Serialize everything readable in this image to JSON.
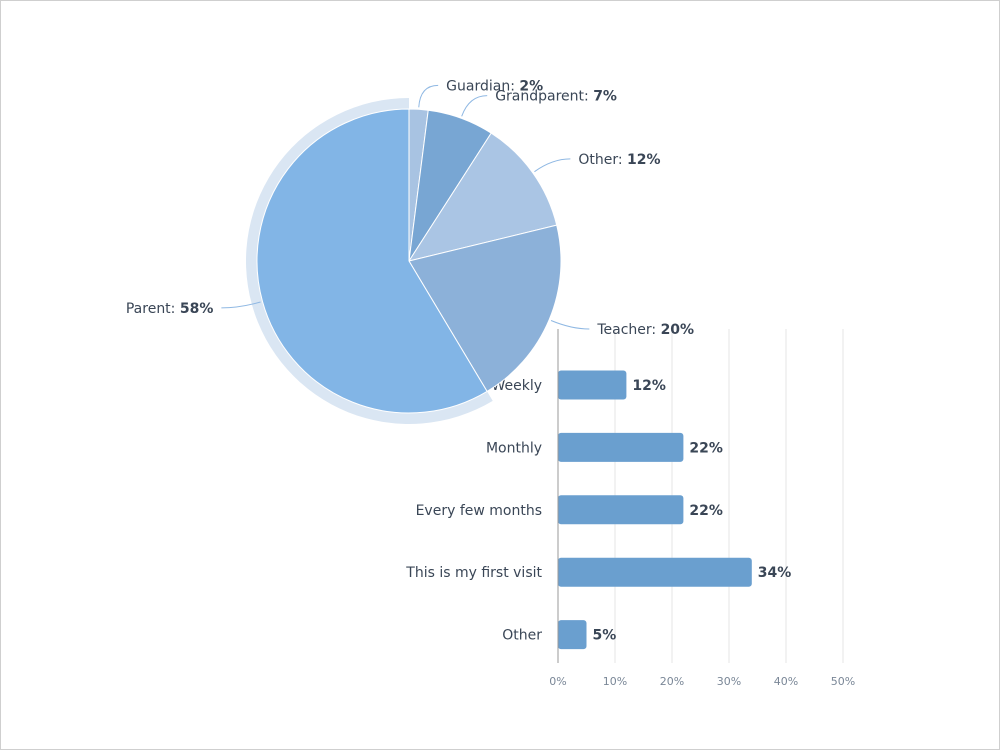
{
  "chart_data": [
    {
      "type": "pie",
      "slices": [
        {
          "label": "Guardian",
          "value": 2,
          "display": "2%",
          "color": "#a8c3e2"
        },
        {
          "label": "Grandparent",
          "value": 7,
          "display": "7%",
          "color": "#78a6d3"
        },
        {
          "label": "Other",
          "value": 12,
          "display": "12%",
          "color": "#aac5e4"
        },
        {
          "label": "Teacher",
          "value": 20,
          "display": "20%",
          "color": "#8cb1d9"
        },
        {
          "label": "Parent",
          "value": 58,
          "display": "58%",
          "color": "#82b5e6"
        }
      ],
      "highlighted_slice": "Parent",
      "highlight_color": "#dae6f3",
      "leader_line_color": "#8fb8e3"
    },
    {
      "type": "bar",
      "orientation": "horizontal",
      "categories": [
        "Weekly",
        "Monthly",
        "Every few months",
        "This is my first visit",
        "Other"
      ],
      "values": [
        12,
        22,
        22,
        34,
        5
      ],
      "value_labels": [
        "12%",
        "22%",
        "22%",
        "34%",
        "5%"
      ],
      "xlim": [
        0,
        50
      ],
      "x_ticks": [
        "0%",
        "10%",
        "20%",
        "30%",
        "40%",
        "50%"
      ],
      "grid": true,
      "bar_color": "#6a9fcf"
    }
  ]
}
